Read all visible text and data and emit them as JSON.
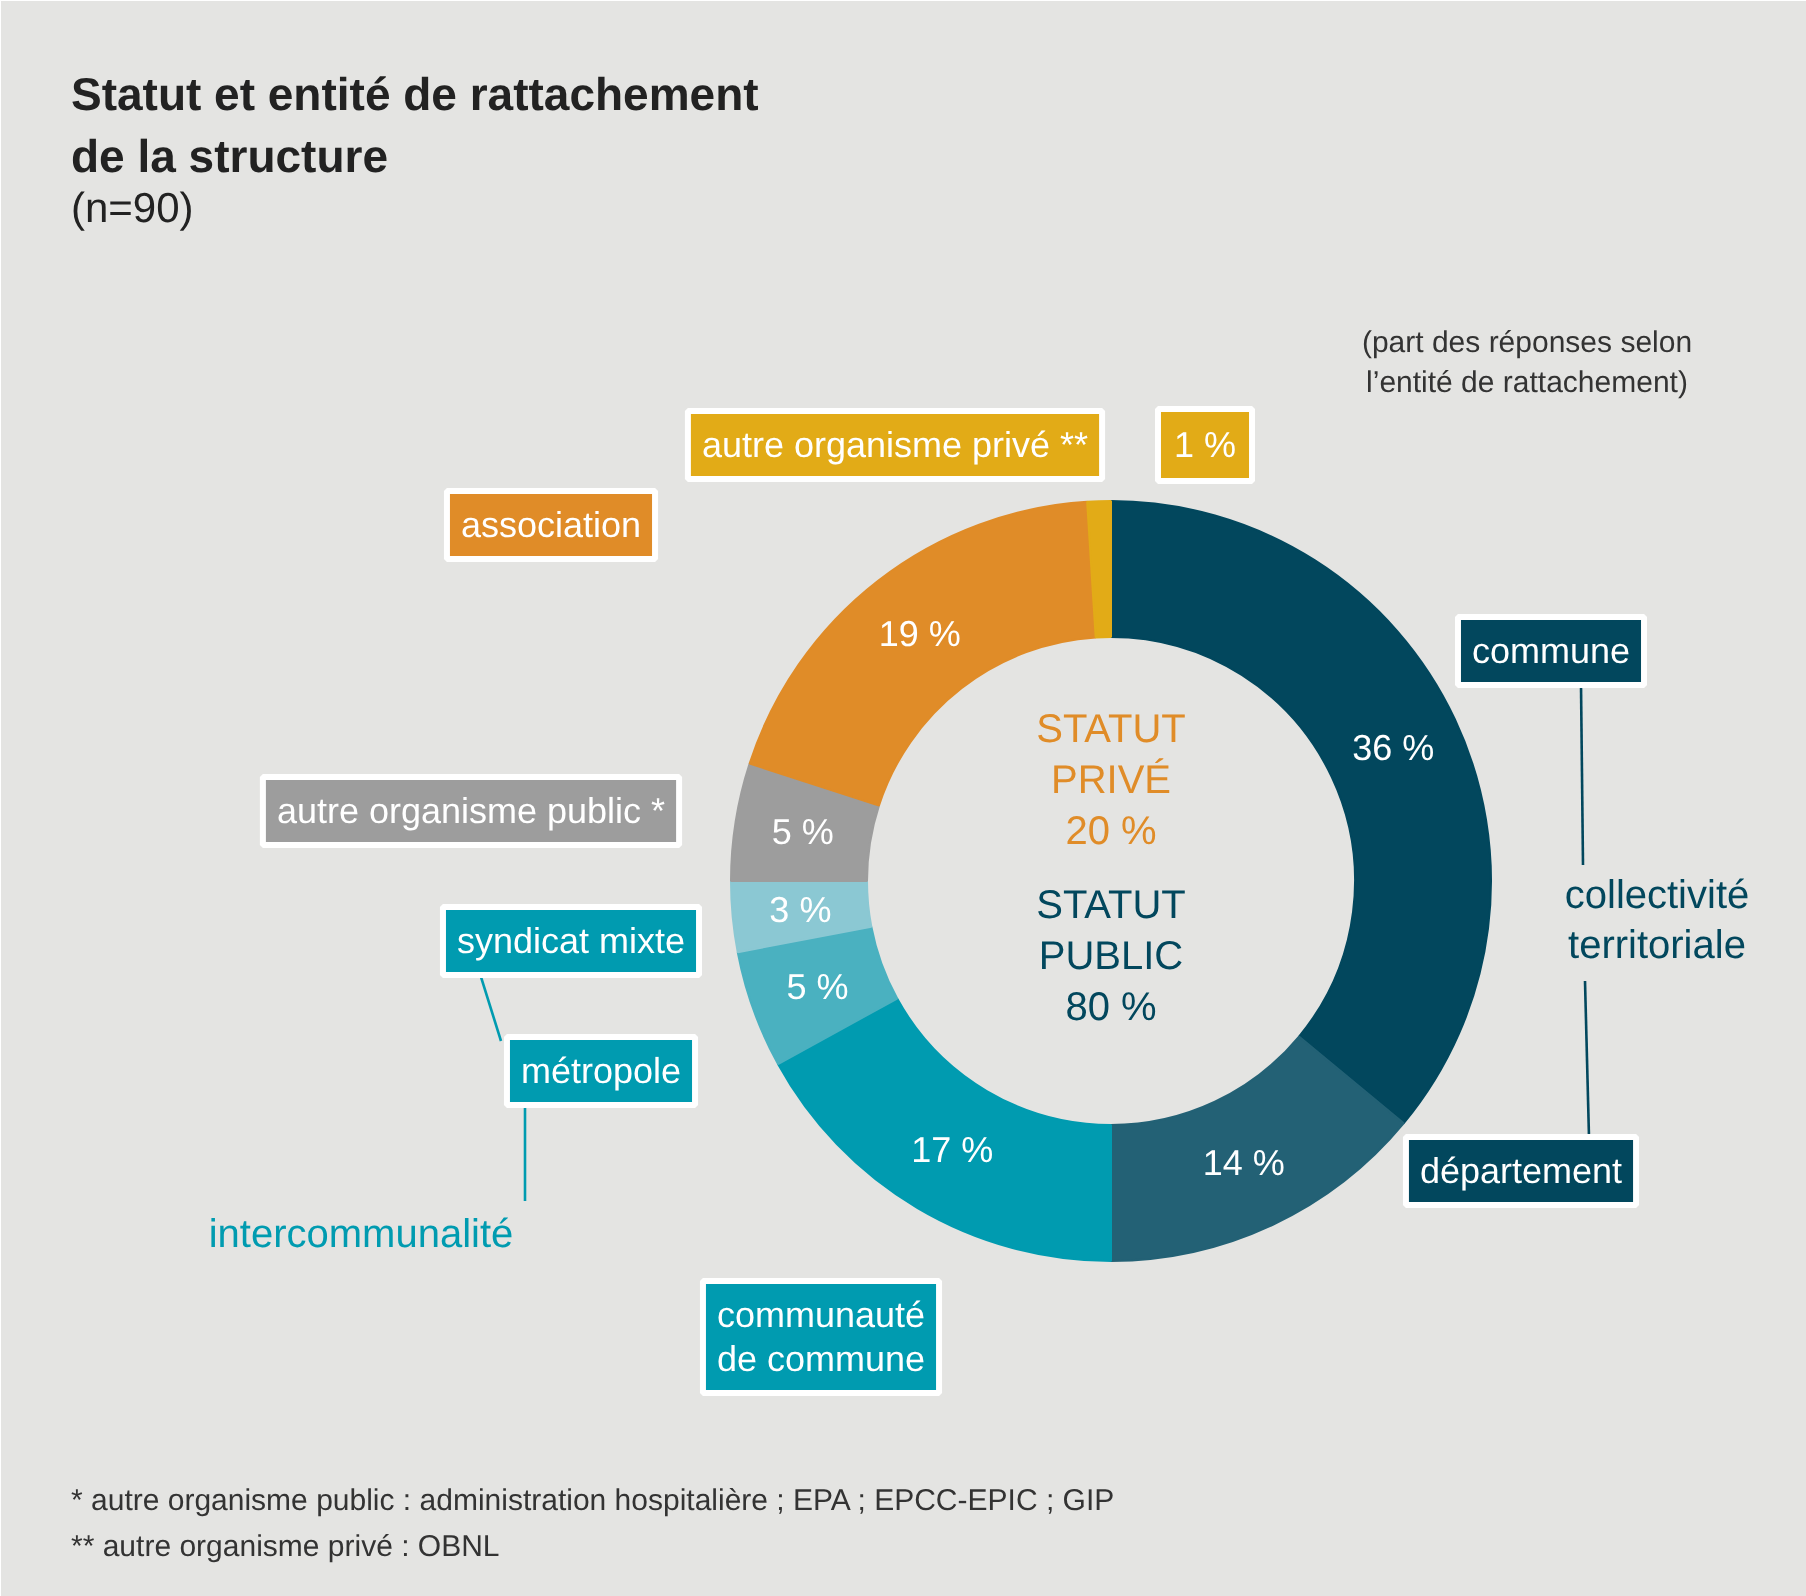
{
  "chart_data": {
    "type": "donut",
    "title": "Statut et entité de rattachement\nde la structure",
    "subtitle": "(n=90)",
    "categories": [
      "commune",
      "département",
      "communauté\nde commune",
      "métropole",
      "syndicat mixte",
      "autre organisme public *",
      "association",
      "autre organisme privé **"
    ],
    "values": [
      36,
      14,
      17,
      5,
      3,
      5,
      19,
      1
    ],
    "value_labels": [
      "36 %",
      "14 %",
      "17 %",
      "5 %",
      "3 %",
      "5 %",
      "19 %",
      "1 %"
    ],
    "colors": [
      "#02475d",
      "#236175",
      "#009bb0",
      "#4ab1c0",
      "#8bc8d3",
      "#9d9d9d",
      "#e08c28",
      "#e2ab17"
    ],
    "annotations": [
      "(part des réponses selon\nl’entité de rattachement)",
      "STATUT\nPUBLIC\n80 %",
      "STATUT\nPRIVÉ\n20 %",
      "collectivité\nterritoriale",
      "intercommunalité",
      "* autre organisme public : administration hospitalière ; EPA ; EPCC-EPIC ; GIP",
      "** autre organisme privé : OBNL"
    ]
  }
}
